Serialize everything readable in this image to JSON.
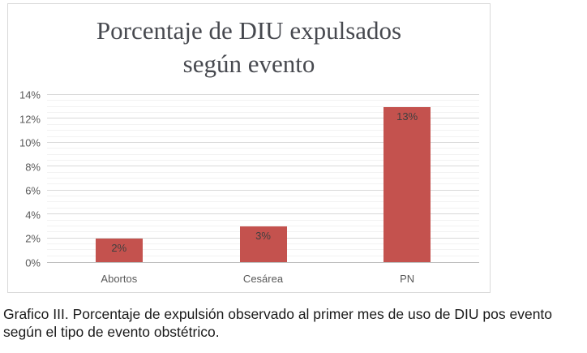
{
  "figure": {
    "caption": "Grafico III. Porcentaje de expulsión observado al primer mes de uso de DIU pos evento según el tipo de evento obstétrico."
  },
  "chart_data": {
    "type": "bar",
    "title": "Porcentaje de DIU expulsados según evento",
    "categories": [
      "Abortos",
      "Cesárea",
      "PN"
    ],
    "values": [
      2,
      3,
      13
    ],
    "value_labels": [
      "2%",
      "3%",
      "13%"
    ],
    "xlabel": "",
    "ylabel": "",
    "ylim": [
      0,
      14
    ],
    "ytick_step": 2,
    "minor_tick_step": 0.5,
    "yticks": [
      "0%",
      "2%",
      "4%",
      "6%",
      "8%",
      "10%",
      "12%",
      "14%"
    ],
    "grid": true,
    "legend": false
  },
  "colors": {
    "bar": "#c4524e",
    "grid_major": "#d9d9d9",
    "grid_minor": "#f2f2f2",
    "axis_line": "#bfbfbf",
    "card_border": "#d9d9d9",
    "tick_text": "#595959",
    "title_text": "#47494f",
    "value_label_text": "#3f3f3f"
  }
}
